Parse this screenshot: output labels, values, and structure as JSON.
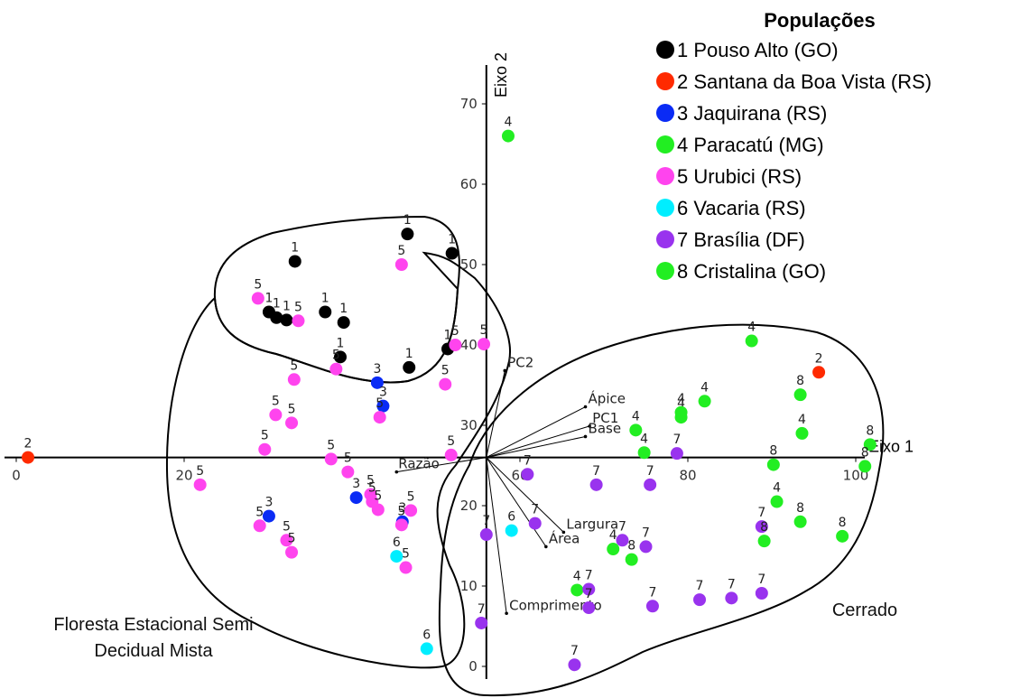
{
  "chart_data": {
    "type": "scatter",
    "xlabel": "Eixo 1",
    "ylabel": "Eixo 2",
    "x_ticks": [
      0,
      20,
      60,
      80,
      100
    ],
    "y_ticks": [
      0,
      10,
      20,
      30,
      40,
      50,
      60,
      70
    ],
    "xlim": [
      0,
      102
    ],
    "ylim": [
      -1,
      74
    ],
    "origin": [
      56,
      26
    ],
    "legend": {
      "title": "Populações",
      "placement": "top-right",
      "entries": [
        {
          "name": "1 Pouso Alto (GO)",
          "color": "#000000"
        },
        {
          "name": "2 Santana da Boa Vista (RS)",
          "color": "#ff2a00"
        },
        {
          "name": "3 Jaquirana (RS)",
          "color": "#0a2bf5"
        },
        {
          "name": "4 Paracatú (MG)",
          "color": "#22ee22"
        },
        {
          "name": "5 Urubici (RS)",
          "color": "#ff44ee"
        },
        {
          "name": "6 Vacaria (RS)",
          "color": "#00eeff"
        },
        {
          "name": "7 Brasília (DF)",
          "color": "#9933ee"
        },
        {
          "name": "8 Cristalina (GO)",
          "color": "#22ee22"
        }
      ]
    },
    "vectors": [
      {
        "name": "PC2",
        "x": 58.2,
        "y": 36.8
      },
      {
        "name": "Ápice",
        "x": 67.8,
        "y": 32.3
      },
      {
        "name": "PC1",
        "x": 68.3,
        "y": 29.9
      },
      {
        "name": "Base",
        "x": 67.8,
        "y": 28.6
      },
      {
        "name": "Razão",
        "x": 45.3,
        "y": 24.2
      },
      {
        "name": "Largura",
        "x": 65.2,
        "y": 16.7
      },
      {
        "name": "Área",
        "x": 63.1,
        "y": 14.9
      },
      {
        "name": "Comprimento",
        "x": 58.4,
        "y": 6.6
      }
    ],
    "groups": [
      {
        "name": "1",
        "color": "#000000",
        "points": [
          [
            33.2,
            50.4
          ],
          [
            46.6,
            53.8
          ],
          [
            51.9,
            51.4
          ],
          [
            30.1,
            44.1
          ],
          [
            31.0,
            43.4
          ],
          [
            32.2,
            43.1
          ],
          [
            36.8,
            44.1
          ],
          [
            39.0,
            42.8
          ],
          [
            38.6,
            38.5
          ],
          [
            46.8,
            37.2
          ],
          [
            51.4,
            39.5
          ]
        ]
      },
      {
        "name": "2",
        "color": "#ff2a00",
        "points": [
          [
            1.4,
            26.0
          ],
          [
            95.6,
            36.6
          ]
        ]
      },
      {
        "name": "3",
        "color": "#0a2bf5",
        "points": [
          [
            43.0,
            35.3
          ],
          [
            43.7,
            32.4
          ],
          [
            40.5,
            21.0
          ],
          [
            30.1,
            18.7
          ],
          [
            46.0,
            18.0
          ]
        ]
      },
      {
        "name": "4",
        "color": "#22ee22",
        "points": [
          [
            58.6,
            66.0
          ],
          [
            73.8,
            29.4
          ],
          [
            74.8,
            26.6
          ],
          [
            79.2,
            31.0
          ],
          [
            79.2,
            31.6
          ],
          [
            82.0,
            33.0
          ],
          [
            87.6,
            40.5
          ],
          [
            93.6,
            29.0
          ],
          [
            90.6,
            20.5
          ],
          [
            71.1,
            14.6
          ],
          [
            66.8,
            9.5
          ]
        ]
      },
      {
        "name": "5",
        "color": "#ff44ee",
        "points": [
          [
            45.9,
            50.0
          ],
          [
            28.8,
            45.8
          ],
          [
            33.6,
            43.0
          ],
          [
            52.3,
            40.0
          ],
          [
            55.7,
            40.1
          ],
          [
            38.1,
            37.0
          ],
          [
            33.1,
            35.7
          ],
          [
            51.1,
            35.1
          ],
          [
            43.3,
            31.0
          ],
          [
            30.9,
            31.3
          ],
          [
            32.8,
            30.3
          ],
          [
            29.6,
            27.0
          ],
          [
            51.8,
            26.3
          ],
          [
            21.9,
            22.6
          ],
          [
            37.5,
            25.8
          ],
          [
            39.5,
            24.2
          ],
          [
            42.2,
            21.4
          ],
          [
            42.4,
            20.5
          ],
          [
            43.1,
            19.5
          ],
          [
            47.0,
            19.4
          ],
          [
            45.9,
            17.6
          ],
          [
            29.0,
            17.5
          ],
          [
            32.2,
            15.7
          ],
          [
            32.8,
            14.2
          ],
          [
            46.4,
            12.3
          ]
        ]
      },
      {
        "name": "6",
        "color": "#00eeff",
        "points": [
          [
            59.0,
            16.9
          ],
          [
            45.3,
            13.7
          ],
          [
            48.9,
            2.2
          ]
        ]
      },
      {
        "name": "7",
        "color": "#9933ee",
        "points": [
          [
            60.9,
            23.9
          ],
          [
            69.1,
            22.6
          ],
          [
            75.5,
            22.6
          ],
          [
            78.7,
            26.5
          ],
          [
            61.8,
            17.8
          ],
          [
            56.0,
            16.4
          ],
          [
            72.2,
            15.7
          ],
          [
            75.0,
            14.9
          ],
          [
            68.2,
            9.6
          ],
          [
            68.2,
            7.3
          ],
          [
            55.4,
            5.4
          ],
          [
            75.8,
            7.5
          ],
          [
            81.4,
            8.3
          ],
          [
            85.2,
            8.5
          ],
          [
            88.8,
            9.1
          ],
          [
            88.8,
            17.4
          ],
          [
            66.5,
            0.2
          ]
        ]
      },
      {
        "name": "8",
        "color": "#22ee22",
        "points": [
          [
            93.4,
            33.8
          ],
          [
            101.7,
            27.6
          ],
          [
            101.1,
            24.9
          ],
          [
            90.2,
            25.1
          ],
          [
            89.1,
            15.6
          ],
          [
            93.4,
            18.0
          ],
          [
            98.4,
            16.2
          ],
          [
            73.3,
            13.3
          ]
        ]
      }
    ],
    "regions": [
      {
        "lines": [
          "Floresta Estacional Semi",
          "Decidual Mista"
        ]
      },
      {
        "lines": [
          "Cerrado"
        ]
      }
    ]
  }
}
